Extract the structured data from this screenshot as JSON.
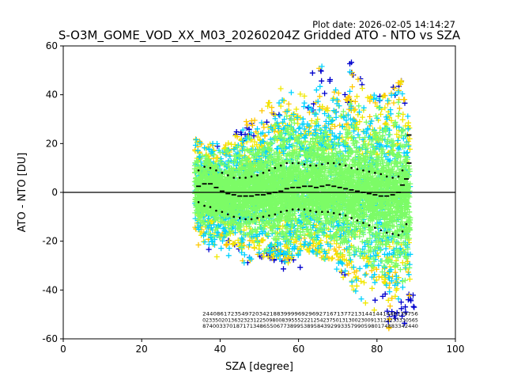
{
  "chart_data": {
    "type": "scatter",
    "plot_date": "Plot date: 2026-02-05 14:14:27",
    "title": "S-O3M_GOME_VOD_XX_M03_20260204Z Gridded ATO - NTO vs SZA",
    "xlabel": "SZA [degree]",
    "ylabel": "ATO - NTO [DU]",
    "xlim": [
      0,
      100
    ],
    "ylim": [
      -60,
      60
    ],
    "xticks": [
      0,
      20,
      40,
      60,
      80,
      100
    ],
    "yticks": [
      -60,
      -40,
      -20,
      0,
      20,
      40,
      60
    ],
    "grid": false,
    "reference_line_y": 0,
    "marker": "+",
    "colors": {
      "level_1": "#0000cd",
      "level_2": "#00d2ff",
      "level_3": "#7cfc66",
      "level_4": "#f0e800",
      "level_5": "#ffc800",
      "statistics": "#000000"
    },
    "scatter_cloud": {
      "sza_range": [
        33.5,
        88.5
      ],
      "envelope": [
        {
          "sza": 34,
          "lower": -22,
          "upper": 22
        },
        {
          "sza": 38,
          "lower": -27,
          "upper": 20
        },
        {
          "sza": 42,
          "lower": -26,
          "upper": 20
        },
        {
          "sza": 46,
          "lower": -30,
          "upper": 29
        },
        {
          "sza": 50,
          "lower": -27,
          "upper": 32
        },
        {
          "sza": 54,
          "lower": -28,
          "upper": 43
        },
        {
          "sza": 58,
          "lower": -29,
          "upper": 52
        },
        {
          "sza": 62,
          "lower": -24,
          "upper": 40
        },
        {
          "sza": 66,
          "lower": -27,
          "upper": 54
        },
        {
          "sza": 70,
          "lower": -33,
          "upper": 43
        },
        {
          "sza": 74,
          "lower": -40,
          "upper": 52
        },
        {
          "sza": 78,
          "lower": -48,
          "upper": 40
        },
        {
          "sza": 82,
          "lower": -56,
          "upper": 40
        },
        {
          "sza": 86,
          "lower": -58,
          "upper": 48
        },
        {
          "sza": 88,
          "lower": -50,
          "upper": 30
        }
      ]
    },
    "series": [
      {
        "name": "median",
        "style": "short black dashes",
        "points": [
          [
            34.5,
            2.5
          ],
          [
            36,
            3.5
          ],
          [
            37.5,
            3.5
          ],
          [
            39,
            2
          ],
          [
            40.5,
            0.5
          ],
          [
            42,
            -0.5
          ],
          [
            43.5,
            -1
          ],
          [
            45,
            -1.5
          ],
          [
            46.5,
            -1.5
          ],
          [
            48,
            -1.5
          ],
          [
            49.5,
            -1
          ],
          [
            51,
            -1
          ],
          [
            52.5,
            -0.5
          ],
          [
            54,
            0
          ],
          [
            55.5,
            0.5
          ],
          [
            57,
            1.5
          ],
          [
            58.5,
            2
          ],
          [
            60,
            2
          ],
          [
            61.5,
            2.5
          ],
          [
            63,
            2.5
          ],
          [
            64.5,
            2
          ],
          [
            66,
            2.5
          ],
          [
            67.5,
            3
          ],
          [
            69,
            2.5
          ],
          [
            70.5,
            2
          ],
          [
            72,
            1.5
          ],
          [
            73.5,
            1
          ],
          [
            75,
            0.5
          ],
          [
            76.5,
            0
          ],
          [
            78,
            -0.5
          ],
          [
            79.5,
            -1
          ],
          [
            81,
            -1.5
          ],
          [
            82.5,
            -1.5
          ],
          [
            84,
            -1
          ],
          [
            85.5,
            0
          ],
          [
            86.5,
            3
          ],
          [
            87.5,
            5.5
          ],
          [
            88.2,
            12
          ],
          [
            88.2,
            23.5
          ]
        ]
      },
      {
        "name": "upper spread",
        "style": "black dots",
        "points": [
          [
            34.5,
            9
          ],
          [
            36,
            10.5
          ],
          [
            37.5,
            10
          ],
          [
            39,
            9
          ],
          [
            40.5,
            8
          ],
          [
            42,
            7
          ],
          [
            43.5,
            6
          ],
          [
            45,
            6
          ],
          [
            46.5,
            6
          ],
          [
            48,
            6.5
          ],
          [
            49.5,
            7
          ],
          [
            51,
            8
          ],
          [
            52.5,
            9
          ],
          [
            54,
            10
          ],
          [
            55.5,
            11
          ],
          [
            57,
            12
          ],
          [
            58.5,
            12
          ],
          [
            60,
            12
          ],
          [
            61.5,
            11.5
          ],
          [
            63,
            11
          ],
          [
            64.5,
            11
          ],
          [
            66,
            11.5
          ],
          [
            67.5,
            12
          ],
          [
            69,
            12
          ],
          [
            70.5,
            11.5
          ],
          [
            72,
            11
          ],
          [
            73.5,
            10
          ],
          [
            75,
            9.5
          ],
          [
            76.5,
            9
          ],
          [
            78,
            8.5
          ],
          [
            79.5,
            8
          ],
          [
            81,
            7.5
          ],
          [
            82.5,
            6.5
          ],
          [
            84,
            6
          ],
          [
            85.5,
            6.5
          ],
          [
            86.5,
            9
          ]
        ]
      },
      {
        "name": "lower spread",
        "style": "black dots",
        "points": [
          [
            34.5,
            -4
          ],
          [
            36,
            -5.5
          ],
          [
            37.5,
            -6
          ],
          [
            39,
            -7.5
          ],
          [
            40.5,
            -8
          ],
          [
            42,
            -9
          ],
          [
            43.5,
            -10
          ],
          [
            45,
            -10.5
          ],
          [
            46.5,
            -11
          ],
          [
            48,
            -11
          ],
          [
            49.5,
            -10.5
          ],
          [
            51,
            -10
          ],
          [
            52.5,
            -9.5
          ],
          [
            54,
            -9
          ],
          [
            55.5,
            -8
          ],
          [
            57,
            -7.5
          ],
          [
            58.5,
            -7
          ],
          [
            60,
            -7
          ],
          [
            61.5,
            -7
          ],
          [
            63,
            -7.5
          ],
          [
            64.5,
            -8
          ],
          [
            66,
            -8
          ],
          [
            67.5,
            -8
          ],
          [
            69,
            -8.5
          ],
          [
            70.5,
            -9
          ],
          [
            72,
            -9.5
          ],
          [
            73.5,
            -10.5
          ],
          [
            75,
            -11.5
          ],
          [
            76.5,
            -12.5
          ],
          [
            78,
            -13.5
          ],
          [
            79.5,
            -14.5
          ],
          [
            81,
            -15.5
          ],
          [
            82.5,
            -16.5
          ],
          [
            84,
            -17
          ],
          [
            85.5,
            -17.5
          ],
          [
            86.5,
            -16
          ],
          [
            87.5,
            -13
          ]
        ]
      }
    ],
    "count_annotation": {
      "sza_range": [
        35.5,
        90.5
      ],
      "rows_y": [
        -50.5,
        -53,
        -55.5
      ],
      "rows": [
        "2440861723549720342188399996929692716713772131441441449139756",
        "02335020136323231225098008395552221254237501313002300913122233330565",
        "8740033701871713486550677389953895843929933579905980174883342440"
      ]
    }
  }
}
